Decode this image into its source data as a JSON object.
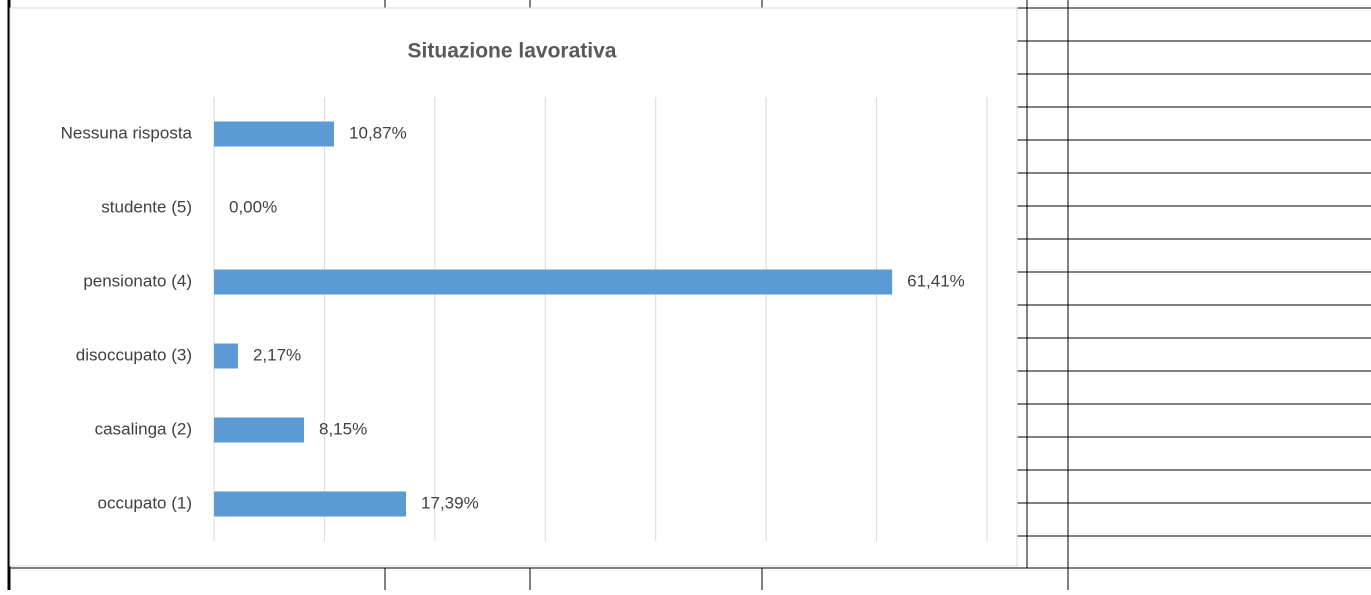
{
  "chart_data": {
    "type": "barh",
    "title": "Situazione lavorativa",
    "categories": [
      "Nessuna risposta",
      "studente (5)",
      "pensionato (4)",
      "disoccupato (3)",
      "casalinga (2)",
      "occupato (1)"
    ],
    "values": [
      10.87,
      0,
      61.41,
      2.17,
      8.15,
      17.39
    ],
    "value_labels": [
      "10,87%",
      "0,00%",
      "61,41%",
      "2,17%",
      "8,15%",
      "17,39%"
    ],
    "color": "#5b9bd5",
    "xlim": [
      0,
      70
    ],
    "xticks": [
      0,
      10,
      20,
      30,
      40,
      50,
      60,
      70
    ],
    "grid": true
  }
}
